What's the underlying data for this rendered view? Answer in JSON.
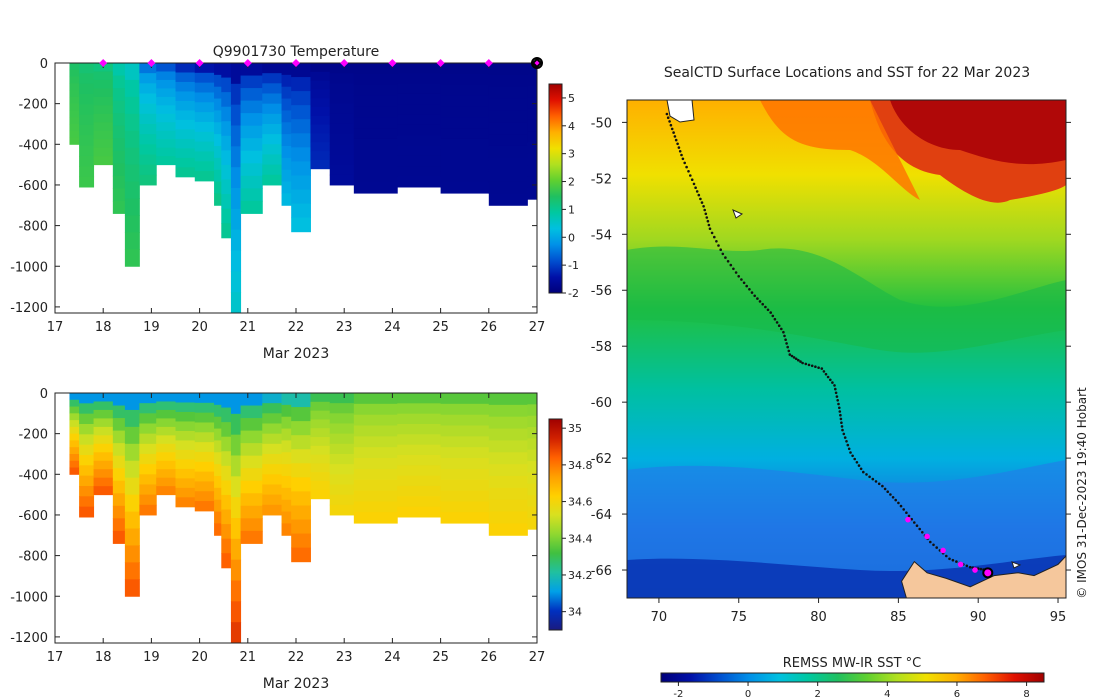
{
  "colors": {
    "temperature_scale": [
      "#00007a",
      "#0010a8",
      "#0050d0",
      "#0090e8",
      "#00c0e0",
      "#00c8a0",
      "#20c060",
      "#60d030",
      "#b0e020",
      "#f0e000",
      "#ffb000",
      "#ff6000",
      "#e01000",
      "#a00000"
    ],
    "salinity_scale": [
      "#1a1a80",
      "#0030c0",
      "#00a0e8",
      "#20c0a0",
      "#40c040",
      "#90d830",
      "#d8e020",
      "#ffd000",
      "#ffa000",
      "#ff6000",
      "#d02000",
      "#a00000"
    ],
    "track": "#111111",
    "markers": "#ff00ff",
    "land": "#f5c79c"
  },
  "chart_data": [
    {
      "type": "heatmap",
      "title": "Q9901730  Temperature",
      "xlabel": "Mar 2023",
      "ylabel": "",
      "x_ticks": [
        "17",
        "18",
        "19",
        "20",
        "21",
        "22",
        "23",
        "24",
        "25",
        "26",
        "27"
      ],
      "xlim": [
        17,
        27
      ],
      "y_ticks": [
        "0",
        "-200",
        "-400",
        "-600",
        "-800",
        "-1000",
        "-1200"
      ],
      "ylim": [
        -1230,
        0
      ],
      "colorbar_ticks": [
        "5",
        "4",
        "3",
        "2",
        "1",
        "0",
        "-1",
        "-2"
      ],
      "colorbar_range": [
        -2,
        5.5
      ],
      "marker_days": [
        18,
        19,
        20,
        21,
        22,
        23,
        24,
        25,
        26,
        27
      ],
      "profiles": [
        {
          "day": 17.3,
          "depth": -400,
          "surface": 1.4,
          "deep": 1.8
        },
        {
          "day": 17.5,
          "depth": -610,
          "surface": 1.3,
          "deep": 1.7
        },
        {
          "day": 17.8,
          "depth": -500,
          "surface": 1.2,
          "deep": 1.8
        },
        {
          "day": 18.2,
          "depth": -740,
          "surface": 0.8,
          "deep": 1.6
        },
        {
          "day": 18.45,
          "depth": -1000,
          "surface": 0.6,
          "deep": 1.6
        },
        {
          "day": 18.75,
          "depth": -600,
          "surface": -0.5,
          "deep": 1.2
        },
        {
          "day": 19.1,
          "depth": -500,
          "surface": -0.8,
          "deep": 0.9
        },
        {
          "day": 19.5,
          "depth": -560,
          "surface": -1.2,
          "deep": 1.0
        },
        {
          "day": 19.9,
          "depth": -580,
          "surface": -1.4,
          "deep": 1.0
        },
        {
          "day": 20.3,
          "depth": -700,
          "surface": -1.5,
          "deep": 1.1
        },
        {
          "day": 20.45,
          "depth": -860,
          "surface": -1.5,
          "deep": 1.0
        },
        {
          "day": 20.65,
          "depth": -1230,
          "surface": -1.6,
          "deep": 0.5
        },
        {
          "day": 20.85,
          "depth": -740,
          "surface": -1.6,
          "deep": 0.9
        },
        {
          "day": 21.3,
          "depth": -600,
          "surface": -1.7,
          "deep": 0.9
        },
        {
          "day": 21.7,
          "depth": -700,
          "surface": -1.7,
          "deep": 0.2
        },
        {
          "day": 21.9,
          "depth": -830,
          "surface": -1.7,
          "deep": 0.3
        },
        {
          "day": 22.3,
          "depth": -520,
          "surface": -1.8,
          "deep": -1.2
        },
        {
          "day": 22.7,
          "depth": -600,
          "surface": -1.8,
          "deep": -1.6
        },
        {
          "day": 23.2,
          "depth": -640,
          "surface": -1.8,
          "deep": -1.7
        },
        {
          "day": 24.1,
          "depth": -610,
          "surface": -1.8,
          "deep": -1.7
        },
        {
          "day": 25.0,
          "depth": -640,
          "surface": -1.8,
          "deep": -1.7
        },
        {
          "day": 26.0,
          "depth": -700,
          "surface": -1.8,
          "deep": -1.7
        },
        {
          "day": 26.8,
          "depth": -670,
          "surface": -1.8,
          "deep": -1.7
        }
      ]
    },
    {
      "type": "heatmap",
      "title": "",
      "xlabel": "Mar 2023",
      "ylabel": "",
      "x_ticks": [
        "17",
        "18",
        "19",
        "20",
        "21",
        "22",
        "23",
        "24",
        "25",
        "26",
        "27"
      ],
      "xlim": [
        17,
        27
      ],
      "y_ticks": [
        "0",
        "-200",
        "-400",
        "-600",
        "-800",
        "-1000",
        "-1200"
      ],
      "ylim": [
        -1230,
        0
      ],
      "colorbar_ticks": [
        "35",
        "34.8",
        "34.6",
        "34.4",
        "34.2",
        "34"
      ],
      "colorbar_range": [
        33.9,
        35.05
      ],
      "profiles": [
        {
          "day": 17.3,
          "depth": -400,
          "surface": 34.1,
          "deep": 34.85
        },
        {
          "day": 17.5,
          "depth": -610,
          "surface": 34.1,
          "deep": 34.85
        },
        {
          "day": 17.8,
          "depth": -500,
          "surface": 34.1,
          "deep": 34.85
        },
        {
          "day": 18.2,
          "depth": -740,
          "surface": 34.1,
          "deep": 34.85
        },
        {
          "day": 18.45,
          "depth": -1000,
          "surface": 34.1,
          "deep": 34.85
        },
        {
          "day": 18.75,
          "depth": -600,
          "surface": 34.1,
          "deep": 34.8
        },
        {
          "day": 19.1,
          "depth": -500,
          "surface": 34.1,
          "deep": 34.78
        },
        {
          "day": 19.5,
          "depth": -560,
          "surface": 34.1,
          "deep": 34.78
        },
        {
          "day": 19.9,
          "depth": -580,
          "surface": 34.1,
          "deep": 34.8
        },
        {
          "day": 20.3,
          "depth": -700,
          "surface": 34.1,
          "deep": 34.82
        },
        {
          "day": 20.45,
          "depth": -860,
          "surface": 34.1,
          "deep": 34.84
        },
        {
          "day": 20.65,
          "depth": -1230,
          "surface": 34.1,
          "deep": 34.9
        },
        {
          "day": 20.85,
          "depth": -740,
          "surface": 34.1,
          "deep": 34.8
        },
        {
          "day": 21.3,
          "depth": -600,
          "surface": 34.15,
          "deep": 34.75
        },
        {
          "day": 21.7,
          "depth": -700,
          "surface": 34.2,
          "deep": 34.78
        },
        {
          "day": 21.9,
          "depth": -830,
          "surface": 34.2,
          "deep": 34.82
        },
        {
          "day": 22.3,
          "depth": -520,
          "surface": 34.3,
          "deep": 34.62
        },
        {
          "day": 22.7,
          "depth": -600,
          "surface": 34.3,
          "deep": 34.6
        },
        {
          "day": 23.2,
          "depth": -640,
          "surface": 34.35,
          "deep": 34.62
        },
        {
          "day": 24.1,
          "depth": -610,
          "surface": 34.35,
          "deep": 34.62
        },
        {
          "day": 25.0,
          "depth": -640,
          "surface": 34.35,
          "deep": 34.62
        },
        {
          "day": 26.0,
          "depth": -700,
          "surface": 34.35,
          "deep": 34.62
        },
        {
          "day": 26.8,
          "depth": -670,
          "surface": 34.35,
          "deep": 34.6
        }
      ]
    },
    {
      "type": "heatmap",
      "title": "SealCTD Surface Locations and SST for 22 Mar 2023",
      "xlabel": "",
      "ylabel": "",
      "x_ticks": [
        "70",
        "75",
        "80",
        "85",
        "90",
        "95"
      ],
      "xlim": [
        68,
        95.5
      ],
      "y_ticks": [
        "-50",
        "-52",
        "-54",
        "-56",
        "-58",
        "-60",
        "-62",
        "-64",
        "-66"
      ],
      "ylim": [
        -67,
        -49.2
      ],
      "colorbar_label": "REMSS MW-IR SST °C",
      "colorbar_ticks": [
        "-2",
        "0",
        "2",
        "4",
        "6",
        "8"
      ],
      "colorbar_range": [
        -2.5,
        8.5
      ],
      "credit": "© IMOS 31-Dec-2023 19:40 Hobart",
      "track": [
        [
          70.5,
          -49.7
        ],
        [
          71.0,
          -50.5
        ],
        [
          71.5,
          -51.3
        ],
        [
          72.2,
          -52.2
        ],
        [
          72.8,
          -53.0
        ],
        [
          73.2,
          -53.8
        ],
        [
          74.0,
          -54.7
        ],
        [
          75.0,
          -55.5
        ],
        [
          76.0,
          -56.2
        ],
        [
          77.0,
          -56.8
        ],
        [
          77.8,
          -57.5
        ],
        [
          78.2,
          -58.3
        ],
        [
          79.0,
          -58.6
        ],
        [
          80.2,
          -58.8
        ],
        [
          81.0,
          -59.4
        ],
        [
          81.3,
          -60.2
        ],
        [
          81.5,
          -61.0
        ],
        [
          82.0,
          -61.8
        ],
        [
          82.8,
          -62.5
        ],
        [
          84.0,
          -63.0
        ],
        [
          85.0,
          -63.6
        ],
        [
          86.0,
          -64.3
        ],
        [
          87.0,
          -65.0
        ],
        [
          88.2,
          -65.6
        ],
        [
          89.5,
          -65.9
        ],
        [
          90.5,
          -66.0
        ]
      ],
      "markers": [
        [
          85.6,
          -64.2
        ],
        [
          86.8,
          -64.8
        ],
        [
          87.8,
          -65.3
        ],
        [
          88.9,
          -65.8
        ],
        [
          89.8,
          -66.0
        ]
      ],
      "final_position": [
        90.6,
        -66.1
      ],
      "land": [
        [
          85.5,
          -67
        ],
        [
          85.2,
          -66.4
        ],
        [
          86.0,
          -65.7
        ],
        [
          86.8,
          -66.1
        ],
        [
          88.0,
          -66.3
        ],
        [
          89.5,
          -66.6
        ],
        [
          91.0,
          -66.2
        ],
        [
          92.5,
          -66.1
        ],
        [
          93.5,
          -66.2
        ],
        [
          95.0,
          -65.8
        ],
        [
          95.5,
          -65.5
        ],
        [
          95.5,
          -67
        ]
      ]
    }
  ]
}
